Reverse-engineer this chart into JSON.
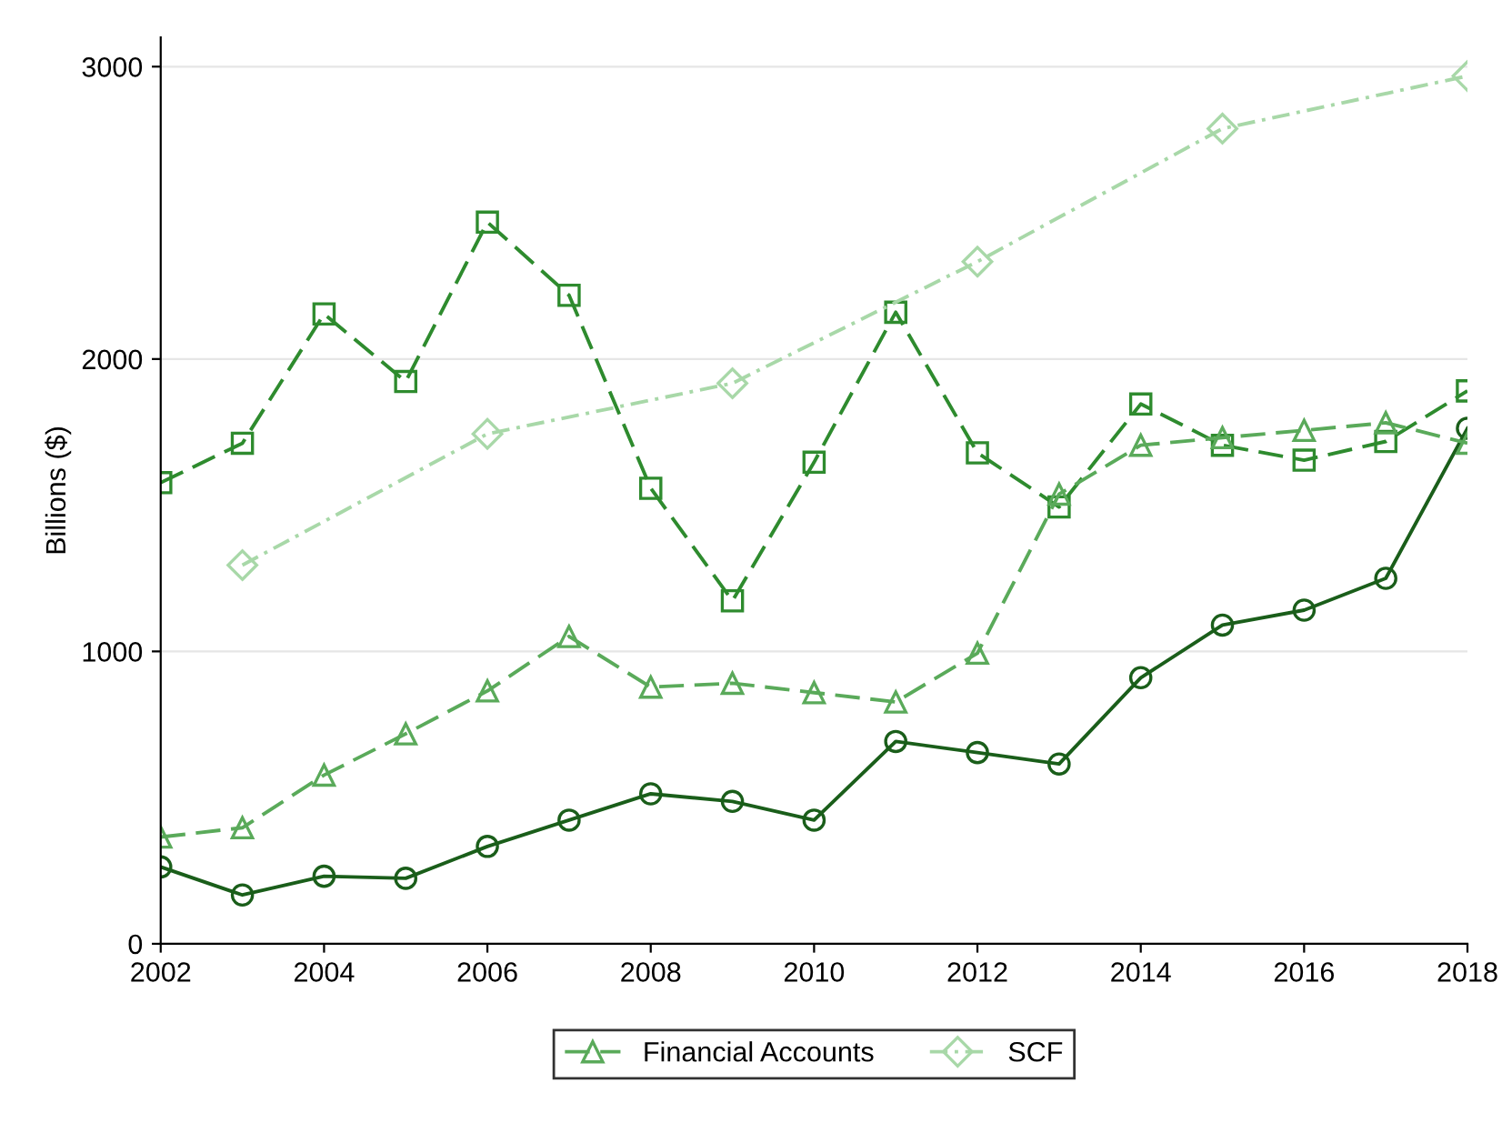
{
  "chart_data": {
    "type": "line",
    "ylabel": "Billions ($)",
    "x": [
      2002,
      2003,
      2004,
      2005,
      2006,
      2007,
      2008,
      2009,
      2010,
      2011,
      2012,
      2013,
      2014,
      2015,
      2016,
      2017,
      2018
    ],
    "series": [
      {
        "color": "#1a5e1a",
        "marker": "circle",
        "line_style": "solid",
        "values": [
          263,
          167,
          231,
          224,
          333,
          423,
          513,
          487,
          423,
          692,
          654,
          615,
          910,
          1090,
          1141,
          1250,
          1763
        ]
      },
      {
        "color": "#2e8b2e",
        "marker": "square",
        "line_style": "dashed",
        "values": [
          1577,
          1712,
          2154,
          1923,
          2468,
          2218,
          1558,
          1173,
          1647,
          2160,
          1679,
          1494,
          1846,
          1705,
          1654,
          1718,
          1891
        ]
      },
      {
        "name": "Financial Accounts",
        "color": "#5aaa5a",
        "marker": "triangle",
        "line_style": "dashed",
        "values": [
          365,
          397,
          577,
          718,
          865,
          1051,
          878,
          891,
          859,
          827,
          994,
          1538,
          1705,
          1731,
          1756,
          1782,
          1712
        ]
      },
      {
        "name": "SCF",
        "color": "#a8d8a8",
        "marker": "diamond",
        "line_style": "dotted",
        "x": [
          2003,
          2006,
          2009,
          2012,
          2015,
          2018
        ],
        "values": [
          1295,
          1744,
          1917,
          2333,
          2788,
          2968
        ]
      }
    ],
    "xlim": [
      2002,
      2018
    ],
    "xticks": [
      2002,
      2004,
      2006,
      2008,
      2010,
      2012,
      2014,
      2016,
      2018
    ],
    "ylim": [
      0,
      3100
    ],
    "yticks": [
      0,
      1000,
      2000,
      3000
    ],
    "grid": "y",
    "legend": "bottom"
  }
}
